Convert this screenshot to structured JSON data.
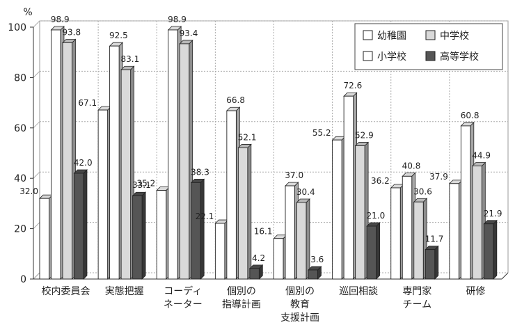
{
  "chart_data": {
    "type": "bar",
    "title": "",
    "xlabel": "",
    "ylabel": "%",
    "ylim": [
      0,
      100
    ],
    "yticks": [
      "0",
      "20",
      "40",
      "60",
      "80",
      "100"
    ],
    "grid": true,
    "legend_placement": "top-right",
    "categories": [
      [
        "校内委員会"
      ],
      [
        "実態把握"
      ],
      [
        "コーディ",
        "ネーター"
      ],
      [
        "個別の",
        "指導計画"
      ],
      [
        "個別の",
        "教育",
        "支援計画"
      ],
      [
        "巡回相談"
      ],
      [
        "専門家",
        "チーム"
      ],
      [
        "研修"
      ]
    ],
    "series": [
      {
        "name": "幼稚園",
        "color": "#ffffff",
        "values": [
          32.0,
          67.1,
          35.2,
          22.1,
          16.1,
          55.2,
          36.2,
          37.9
        ]
      },
      {
        "name": "小学校",
        "color": "#ffffff",
        "values": [
          98.9,
          92.5,
          98.9,
          66.8,
          37.0,
          72.6,
          40.8,
          60.8
        ]
      },
      {
        "name": "中学校",
        "color": "#d9d9d9",
        "values": [
          93.8,
          83.1,
          93.4,
          52.1,
          30.4,
          52.9,
          30.6,
          44.9
        ]
      },
      {
        "name": "高等学校",
        "color": "#555555",
        "values": [
          42.0,
          33.1,
          38.3,
          4.2,
          3.6,
          21.0,
          11.7,
          21.9
        ]
      }
    ],
    "data_labels": [
      [
        "32.0",
        "98.9",
        "93.8",
        "42.0"
      ],
      [
        "67.1",
        "92.5",
        "83.1",
        "33.1"
      ],
      [
        "35.2",
        "98.9",
        "93.4",
        "38.3"
      ],
      [
        "22.1",
        "66.8",
        "52.1",
        "4.2"
      ],
      [
        "16.1",
        "37.0",
        "30.4",
        "3.6"
      ],
      [
        "55.2",
        "72.6",
        "52.9",
        "21.0"
      ],
      [
        "36.2",
        "40.8",
        "30.6",
        "11.7"
      ],
      [
        "37.9",
        "60.8",
        "44.9",
        "21.9"
      ]
    ],
    "legend": [
      {
        "label": "幼稚園",
        "series_index": 0
      },
      {
        "label": "中学校",
        "series_index": 2
      },
      {
        "label": "小学校",
        "series_index": 1
      },
      {
        "label": "高等学校",
        "series_index": 3
      }
    ]
  }
}
